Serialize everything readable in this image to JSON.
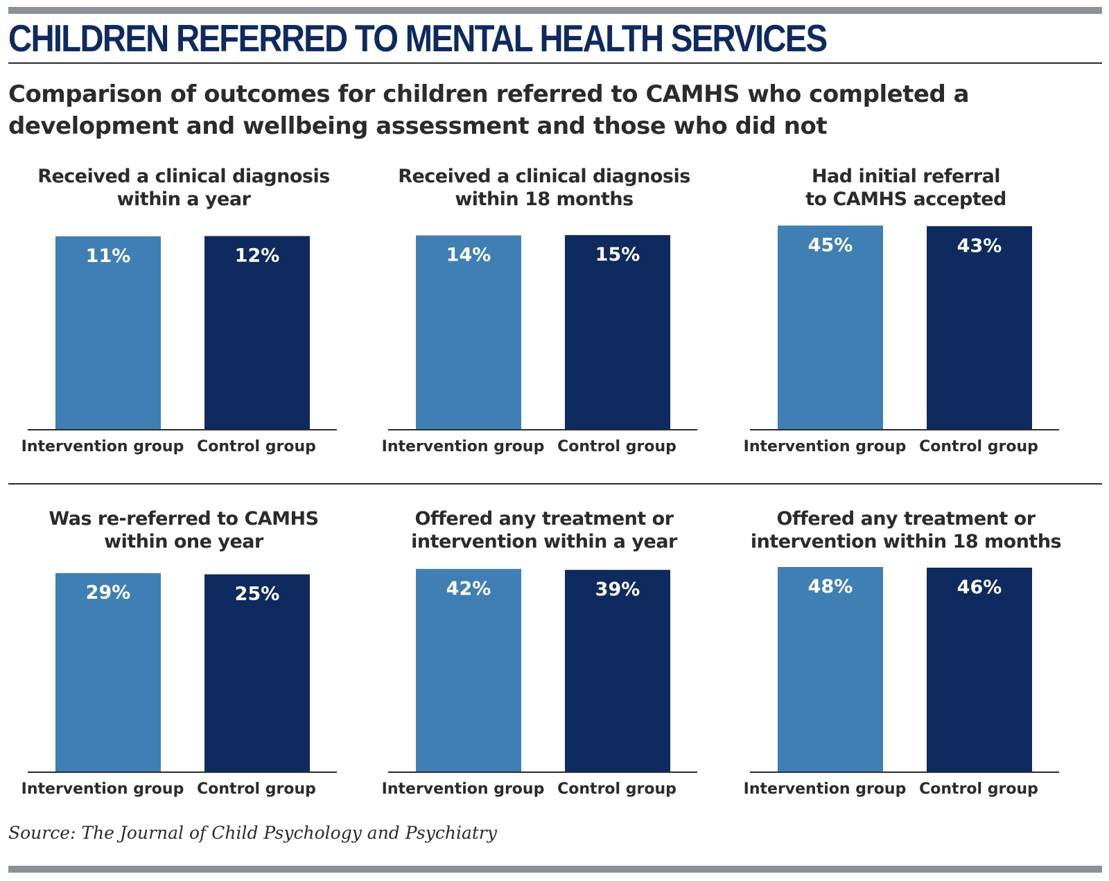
{
  "header": {
    "title": "CHILDREN REFERRED TO MENTAL HEALTH SERVICES",
    "subtitle": "Comparison of outcomes for children referred to CAMHS who completed a development and wellbeing assessment and those who did not"
  },
  "colors": {
    "intervention": "#3f7fb3",
    "control": "#0e2a5e",
    "title": "#0e2a5e"
  },
  "chart_data": [
    {
      "type": "bar",
      "title_lines": [
        "Received a clinical diagnosis",
        "within a year"
      ],
      "categories": [
        "Intervention group",
        "Control group"
      ],
      "values": [
        11,
        12
      ],
      "data_labels": [
        "11%",
        "12%"
      ]
    },
    {
      "type": "bar",
      "title_lines": [
        "Received a clinical diagnosis",
        "within 18 months"
      ],
      "categories": [
        "Intervention group",
        "Control group"
      ],
      "values": [
        14,
        15
      ],
      "data_labels": [
        "14%",
        "15%"
      ]
    },
    {
      "type": "bar",
      "title_lines": [
        "Had initial referral",
        "to CAMHS accepted"
      ],
      "categories": [
        "Intervention group",
        "Control group"
      ],
      "values": [
        45,
        43
      ],
      "data_labels": [
        "45%",
        "43%"
      ]
    },
    {
      "type": "bar",
      "title_lines": [
        "Was re-referred to CAMHS",
        "within one year"
      ],
      "categories": [
        "Intervention group",
        "Control group"
      ],
      "values": [
        29,
        25
      ],
      "data_labels": [
        "29%",
        "25%"
      ]
    },
    {
      "type": "bar",
      "title_lines": [
        "Offered any treatment or",
        "intervention within a year"
      ],
      "categories": [
        "Intervention group",
        "Control group"
      ],
      "values": [
        42,
        39
      ],
      "data_labels": [
        "42%",
        "39%"
      ]
    },
    {
      "type": "bar",
      "title_lines": [
        "Offered any treatment or",
        "intervention within 18 months"
      ],
      "categories": [
        "Intervention group",
        "Control group"
      ],
      "values": [
        48,
        46
      ],
      "data_labels": [
        "48%",
        "46%"
      ]
    }
  ],
  "footer": {
    "source": "Source: The Journal of Child Psychology and Psychiatry"
  }
}
